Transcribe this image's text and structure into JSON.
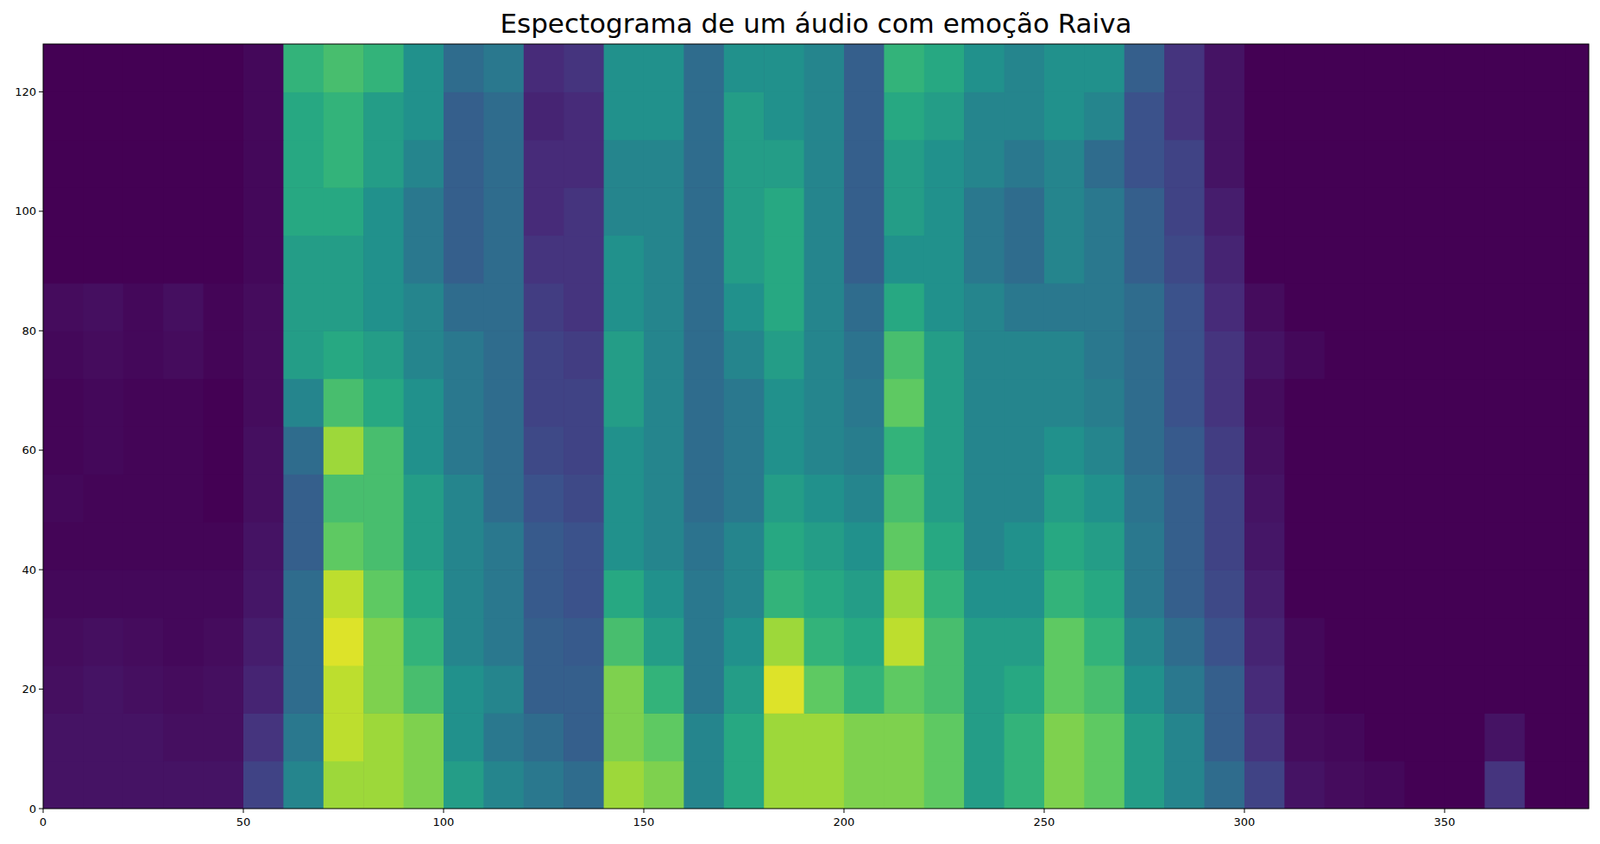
{
  "chart_data": {
    "type": "heatmap",
    "title": "Espectograma de um áudio com emoção Raiva",
    "xlim": [
      0,
      386
    ],
    "ylim": [
      0,
      128
    ],
    "xticks": [
      0,
      50,
      100,
      150,
      200,
      250,
      300,
      350
    ],
    "yticks": [
      0,
      20,
      40,
      60,
      80,
      100,
      120
    ],
    "x_edges": [
      0,
      10,
      20,
      30,
      40,
      50,
      60,
      70,
      80,
      90,
      100,
      110,
      120,
      130,
      140,
      150,
      160,
      170,
      180,
      190,
      200,
      210,
      220,
      230,
      240,
      250,
      260,
      270,
      280,
      290,
      300,
      310,
      320,
      330,
      340,
      350,
      360,
      370,
      380,
      386
    ],
    "y_edges": [
      0,
      8,
      16,
      24,
      32,
      40,
      48,
      56,
      64,
      72,
      80,
      88,
      96,
      104,
      112,
      120,
      128
    ],
    "cells": [
      [
        0.05,
        0.05,
        0.05,
        0.05,
        0.05,
        0.2,
        0.45,
        0.85,
        0.85,
        0.8,
        0.55,
        0.45,
        0.4,
        0.35,
        0.85,
        0.8,
        0.45,
        0.6,
        0.85,
        0.85,
        0.8,
        0.8,
        0.75,
        0.55,
        0.65,
        0.8,
        0.75,
        0.55,
        0.45,
        0.35,
        0.2,
        0.05,
        0.03,
        0.02,
        0,
        0,
        0.15,
        0,
        0
      ],
      [
        0.05,
        0.05,
        0.05,
        0.04,
        0.04,
        0.15,
        0.4,
        0.9,
        0.85,
        0.8,
        0.5,
        0.4,
        0.35,
        0.3,
        0.8,
        0.75,
        0.45,
        0.6,
        0.85,
        0.85,
        0.8,
        0.8,
        0.75,
        0.55,
        0.65,
        0.8,
        0.75,
        0.55,
        0.45,
        0.3,
        0.15,
        0.03,
        0.02,
        0,
        0,
        0,
        0.05,
        0,
        0
      ],
      [
        0.04,
        0.05,
        0.04,
        0.03,
        0.04,
        0.1,
        0.35,
        0.9,
        0.8,
        0.7,
        0.5,
        0.45,
        0.3,
        0.3,
        0.8,
        0.65,
        0.4,
        0.55,
        0.95,
        0.75,
        0.65,
        0.75,
        0.7,
        0.55,
        0.6,
        0.75,
        0.7,
        0.5,
        0.4,
        0.3,
        0.12,
        0.02,
        0,
        0,
        0,
        0,
        0,
        0,
        0
      ],
      [
        0.03,
        0.04,
        0.03,
        0.02,
        0.03,
        0.08,
        0.35,
        0.95,
        0.8,
        0.65,
        0.45,
        0.4,
        0.3,
        0.28,
        0.7,
        0.55,
        0.4,
        0.5,
        0.85,
        0.65,
        0.6,
        0.9,
        0.7,
        0.55,
        0.55,
        0.75,
        0.65,
        0.45,
        0.35,
        0.25,
        0.1,
        0.02,
        0,
        0,
        0,
        0,
        0,
        0,
        0
      ],
      [
        0.02,
        0.02,
        0.02,
        0.02,
        0.02,
        0.06,
        0.35,
        0.9,
        0.75,
        0.6,
        0.45,
        0.4,
        0.28,
        0.25,
        0.6,
        0.5,
        0.4,
        0.45,
        0.65,
        0.6,
        0.55,
        0.85,
        0.65,
        0.5,
        0.5,
        0.65,
        0.6,
        0.4,
        0.3,
        0.22,
        0.08,
        0,
        0,
        0,
        0,
        0,
        0,
        0,
        0
      ],
      [
        0.01,
        0.01,
        0.01,
        0.01,
        0.01,
        0.05,
        0.3,
        0.75,
        0.7,
        0.55,
        0.45,
        0.4,
        0.28,
        0.25,
        0.5,
        0.45,
        0.38,
        0.45,
        0.6,
        0.55,
        0.5,
        0.75,
        0.6,
        0.45,
        0.5,
        0.6,
        0.55,
        0.4,
        0.3,
        0.2,
        0.06,
        0,
        0,
        0,
        0,
        0,
        0,
        0,
        0
      ],
      [
        0.02,
        0.01,
        0.01,
        0.01,
        0,
        0.04,
        0.3,
        0.7,
        0.7,
        0.55,
        0.45,
        0.35,
        0.25,
        0.22,
        0.5,
        0.45,
        0.35,
        0.4,
        0.55,
        0.5,
        0.45,
        0.7,
        0.55,
        0.45,
        0.45,
        0.55,
        0.5,
        0.38,
        0.3,
        0.2,
        0.05,
        0,
        0,
        0,
        0,
        0,
        0,
        0,
        0
      ],
      [
        0.01,
        0.02,
        0.01,
        0.01,
        0,
        0.04,
        0.35,
        0.85,
        0.7,
        0.5,
        0.4,
        0.35,
        0.22,
        0.2,
        0.5,
        0.45,
        0.35,
        0.4,
        0.5,
        0.45,
        0.42,
        0.65,
        0.55,
        0.45,
        0.45,
        0.5,
        0.45,
        0.35,
        0.28,
        0.18,
        0.04,
        0,
        0,
        0,
        0,
        0,
        0,
        0,
        0
      ],
      [
        0.01,
        0.02,
        0.01,
        0.01,
        0,
        0.03,
        0.45,
        0.7,
        0.6,
        0.5,
        0.4,
        0.35,
        0.2,
        0.2,
        0.55,
        0.45,
        0.35,
        0.4,
        0.5,
        0.45,
        0.4,
        0.75,
        0.55,
        0.45,
        0.45,
        0.45,
        0.42,
        0.35,
        0.25,
        0.15,
        0.03,
        0,
        0,
        0,
        0,
        0,
        0,
        0,
        0
      ],
      [
        0.02,
        0.03,
        0.02,
        0.03,
        0.01,
        0.03,
        0.55,
        0.6,
        0.55,
        0.45,
        0.4,
        0.35,
        0.2,
        0.18,
        0.55,
        0.45,
        0.35,
        0.45,
        0.55,
        0.45,
        0.38,
        0.7,
        0.55,
        0.45,
        0.45,
        0.45,
        0.4,
        0.35,
        0.25,
        0.15,
        0.05,
        0.02,
        0,
        0,
        0,
        0,
        0,
        0,
        0
      ],
      [
        0.03,
        0.04,
        0.02,
        0.04,
        0.01,
        0.03,
        0.55,
        0.55,
        0.5,
        0.45,
        0.35,
        0.35,
        0.18,
        0.15,
        0.5,
        0.45,
        0.35,
        0.5,
        0.6,
        0.45,
        0.35,
        0.6,
        0.5,
        0.45,
        0.4,
        0.4,
        0.4,
        0.35,
        0.25,
        0.12,
        0.03,
        0,
        0,
        0,
        0,
        0,
        0,
        0,
        0
      ],
      [
        0,
        0,
        0,
        0,
        0,
        0.02,
        0.55,
        0.55,
        0.5,
        0.4,
        0.3,
        0.35,
        0.15,
        0.15,
        0.5,
        0.45,
        0.35,
        0.55,
        0.6,
        0.45,
        0.3,
        0.5,
        0.5,
        0.4,
        0.35,
        0.45,
        0.4,
        0.3,
        0.22,
        0.1,
        0,
        0,
        0,
        0,
        0,
        0,
        0,
        0,
        0
      ],
      [
        0,
        0,
        0,
        0,
        0,
        0.02,
        0.6,
        0.6,
        0.5,
        0.4,
        0.3,
        0.35,
        0.12,
        0.15,
        0.45,
        0.45,
        0.35,
        0.55,
        0.6,
        0.45,
        0.3,
        0.55,
        0.5,
        0.4,
        0.35,
        0.45,
        0.4,
        0.3,
        0.2,
        0.08,
        0,
        0,
        0,
        0,
        0,
        0,
        0,
        0,
        0
      ],
      [
        0,
        0,
        0,
        0,
        0,
        0.02,
        0.6,
        0.65,
        0.55,
        0.45,
        0.3,
        0.35,
        0.12,
        0.12,
        0.45,
        0.45,
        0.35,
        0.55,
        0.55,
        0.45,
        0.3,
        0.55,
        0.5,
        0.45,
        0.4,
        0.45,
        0.35,
        0.25,
        0.2,
        0.05,
        0,
        0,
        0,
        0,
        0,
        0,
        0,
        0,
        0
      ],
      [
        0,
        0,
        0,
        0,
        0,
        0.02,
        0.6,
        0.65,
        0.55,
        0.5,
        0.3,
        0.35,
        0.1,
        0.12,
        0.5,
        0.5,
        0.35,
        0.55,
        0.5,
        0.45,
        0.3,
        0.6,
        0.55,
        0.45,
        0.45,
        0.5,
        0.45,
        0.25,
        0.15,
        0.05,
        0,
        0,
        0,
        0,
        0,
        0,
        0,
        0,
        0
      ],
      [
        0,
        0,
        0,
        0,
        0,
        0.02,
        0.65,
        0.7,
        0.65,
        0.5,
        0.35,
        0.4,
        0.12,
        0.15,
        0.5,
        0.5,
        0.35,
        0.5,
        0.5,
        0.45,
        0.3,
        0.65,
        0.6,
        0.5,
        0.45,
        0.5,
        0.5,
        0.3,
        0.15,
        0.05,
        0,
        0,
        0,
        0,
        0,
        0,
        0,
        0,
        0
      ]
    ]
  }
}
